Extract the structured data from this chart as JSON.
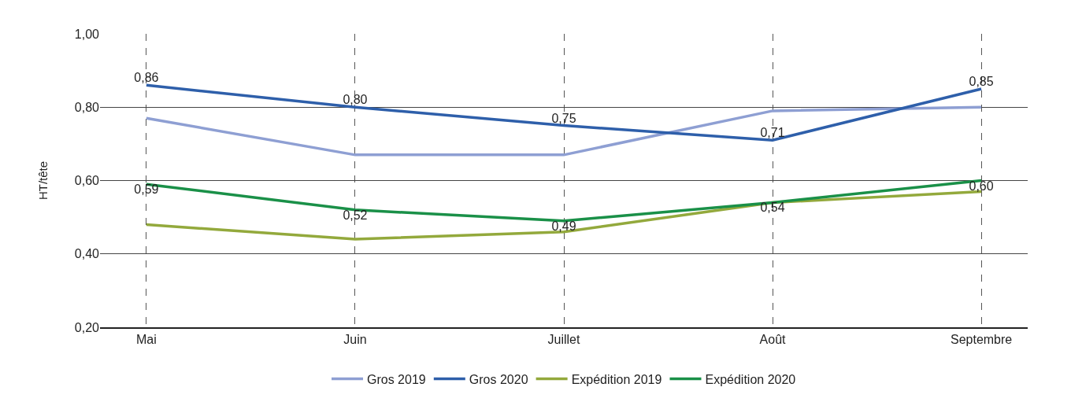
{
  "chart_data": {
    "type": "line",
    "ylabel": "HT/tête",
    "categories": [
      "Mai",
      "Juin",
      "Juillet",
      "Août",
      "Septembre"
    ],
    "series": [
      {
        "name": "Gros 2019",
        "color": "#8e9fd3",
        "values": [
          0.77,
          0.67,
          0.67,
          0.79,
          0.8
        ]
      },
      {
        "name": "Gros 2020",
        "color": "#2e5faa",
        "values": [
          0.86,
          0.8,
          0.75,
          0.71,
          0.85
        ],
        "value_labels": [
          "0,86",
          "0,80",
          "0,75",
          "0,71",
          "0,85"
        ]
      },
      {
        "name": "Expédition 2019",
        "color": "#93a93c",
        "values": [
          0.48,
          0.44,
          0.46,
          0.54,
          0.57
        ]
      },
      {
        "name": "Expédition 2020",
        "color": "#1a9048",
        "values": [
          0.59,
          0.52,
          0.49,
          0.54,
          0.6
        ],
        "value_labels": [
          "0,59",
          "0,52",
          "0,49",
          "0,54",
          "0,60"
        ]
      }
    ],
    "ylim": [
      0.2,
      1.0
    ],
    "yticks": [
      {
        "value": 0.2,
        "label": "0,20"
      },
      {
        "value": 0.4,
        "label": "0,40"
      },
      {
        "value": 0.6,
        "label": "0,60"
      },
      {
        "value": 0.8,
        "label": "0,80"
      },
      {
        "value": 1.0,
        "label": "1,00"
      }
    ],
    "grid": true,
    "legend": "bottom",
    "marker": "none",
    "line_style": "solid"
  }
}
